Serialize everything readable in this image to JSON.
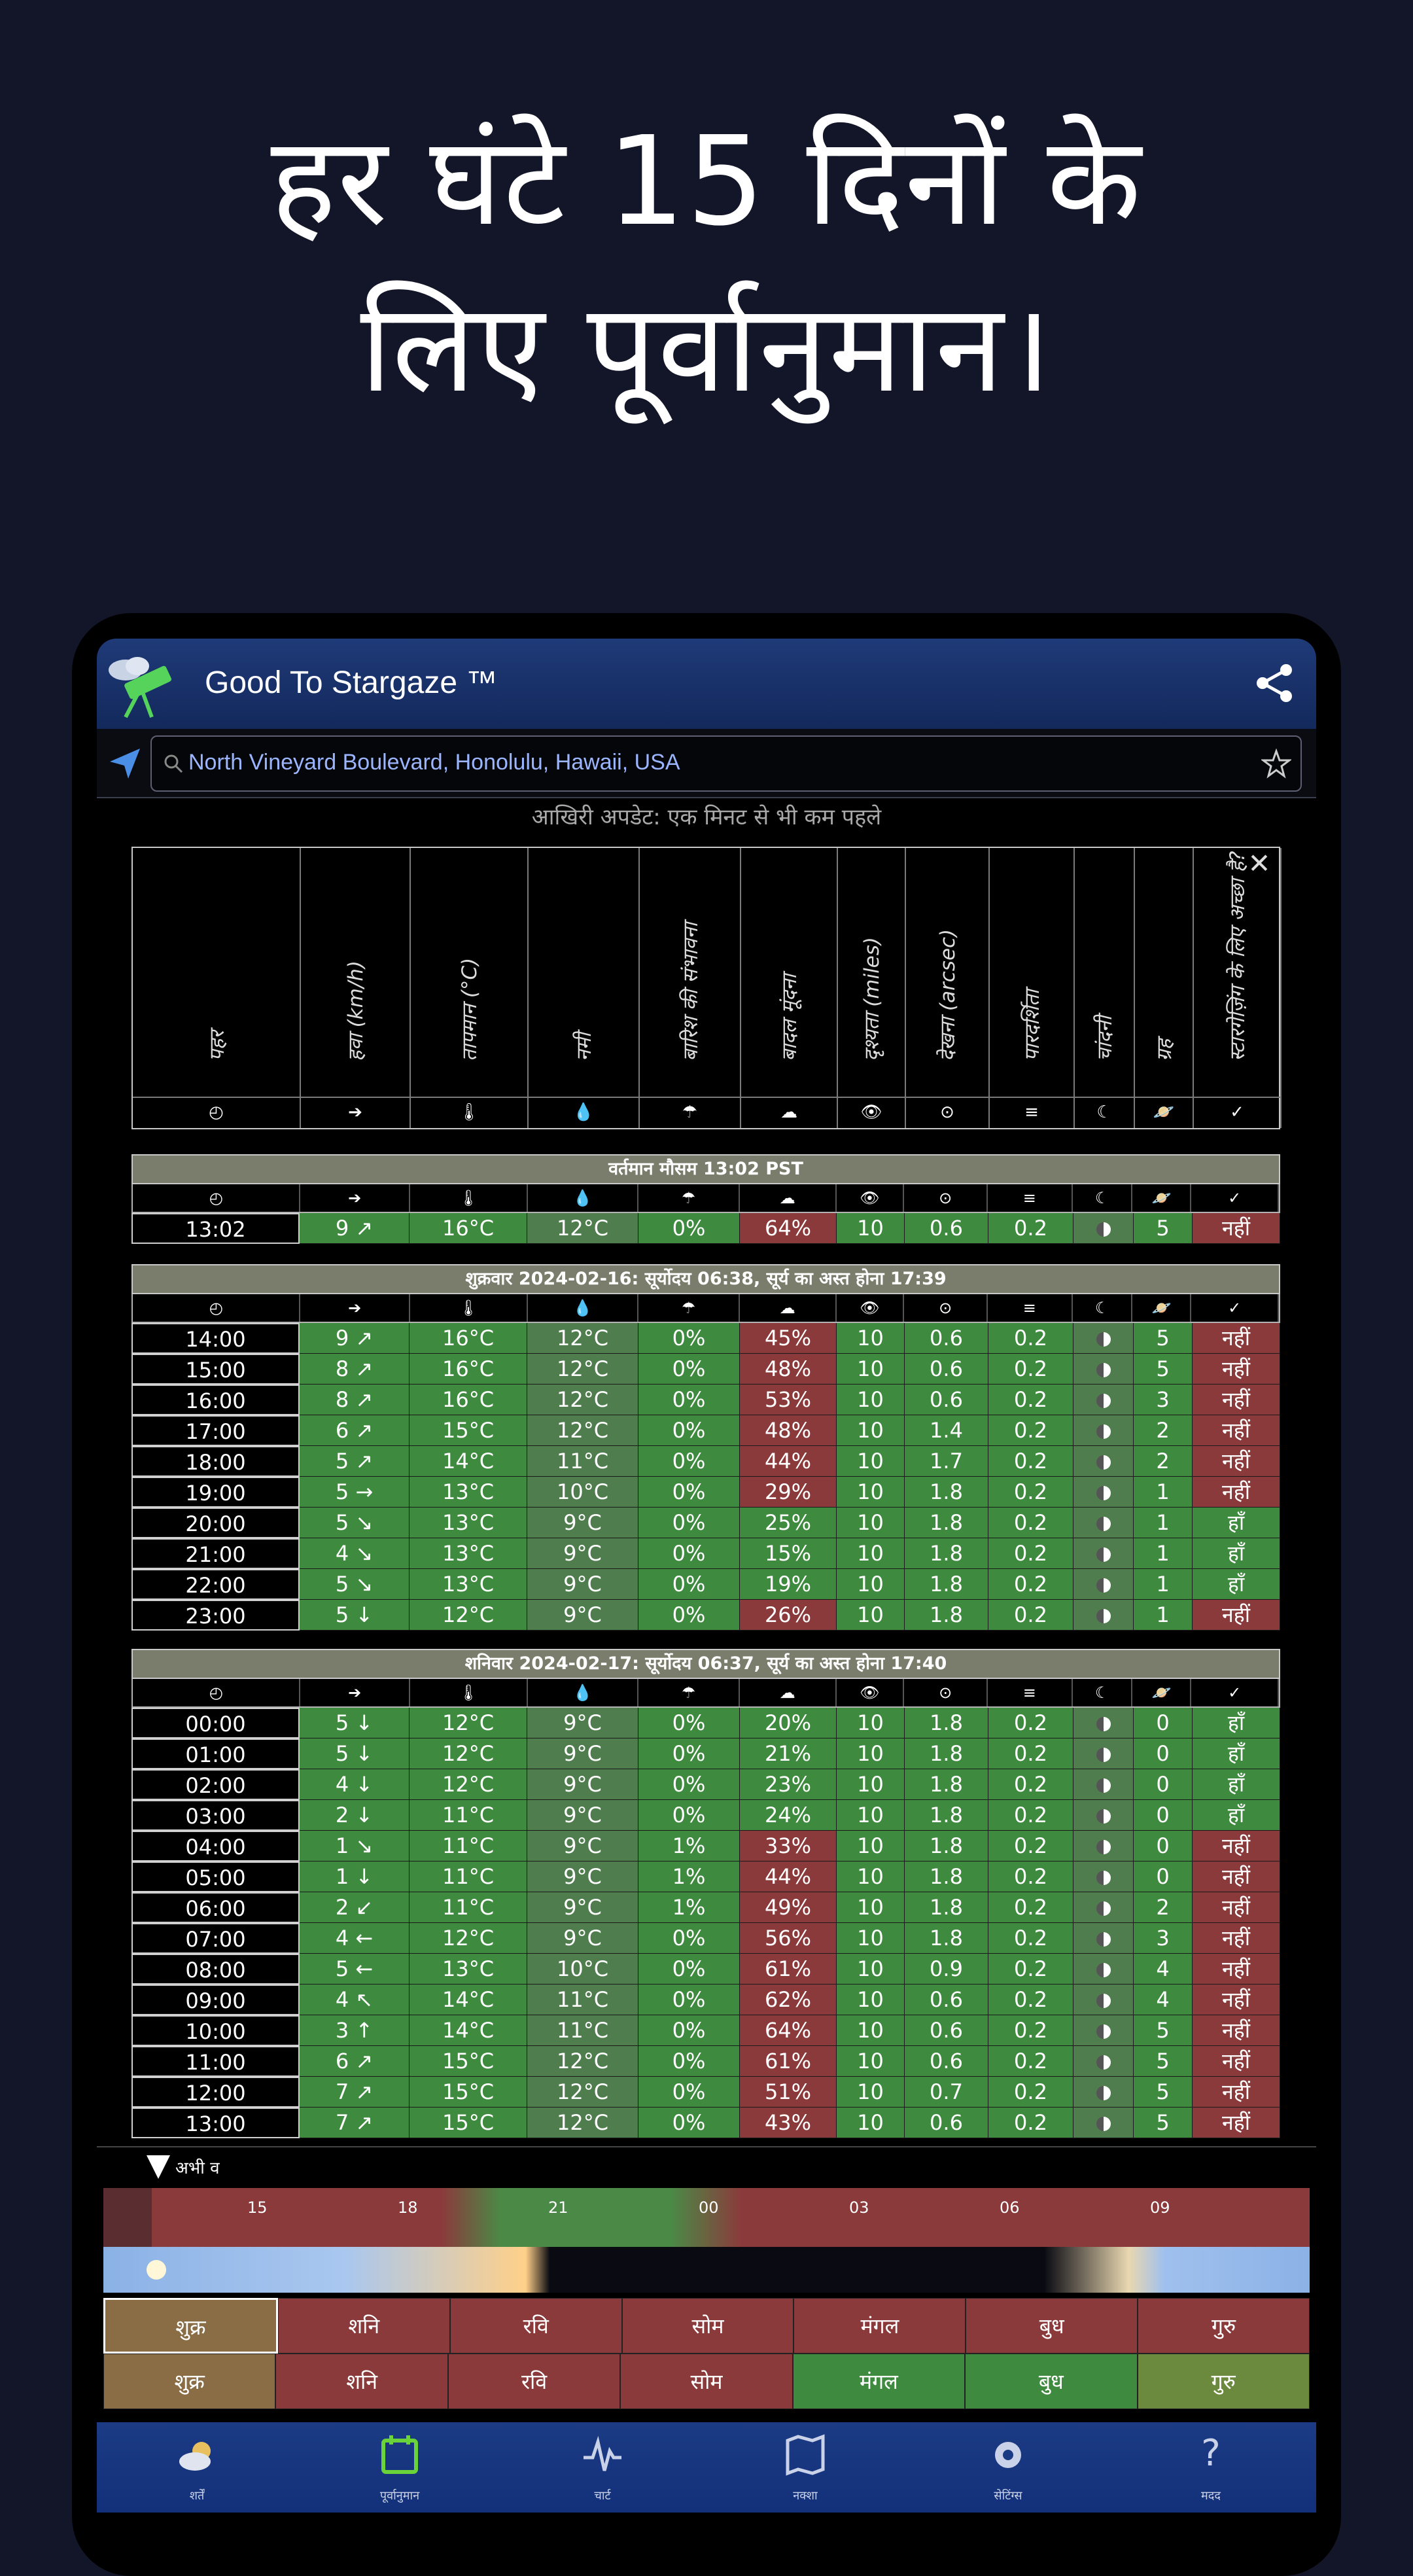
{
  "headline": [
    "हर घंटे 15 दिनों के",
    "लिए पूर्वानुमान।"
  ],
  "app": {
    "title": "Good To Stargaze ™"
  },
  "search": {
    "location": "North Vineyard Boulevard, Honolulu, Hawaii, USA"
  },
  "last_update": "आखिरी अपडेट: एक मिनट से भी कम पहले",
  "columns": [
    "पहर",
    "हवा (km/h)",
    "तापमान (°C)",
    "नमी",
    "बारिश की संभावना",
    "बादल मूंदना",
    "दृश्यता (miles)",
    "देखना (arcsec)",
    "पारदर्शिता",
    "चांदनी",
    "ग्रह",
    "स्टारगेज़िंग के लिए अच्छा है?"
  ],
  "column_icons": [
    "◴",
    "➔",
    "🌡",
    "💧",
    "☂",
    "☁",
    "👁",
    "⊙",
    "≡",
    "☾",
    "🪐",
    "✓"
  ],
  "current": {
    "title": "वर्तमान मौसम 13:02 PST",
    "row": [
      "13:02",
      "9 ↗",
      "16°C",
      "12°C",
      "0%",
      "64%",
      "10",
      "0.6",
      "0.2",
      "",
      "5",
      "नहीं"
    ]
  },
  "sections": [
    {
      "title": "शुक्रवार 2024-02-16: सूर्योदय 06:38, सूर्य का अस्त होना 17:39",
      "rows": [
        [
          "14:00",
          "9 ↗",
          "16°C",
          "12°C",
          "0%",
          "45%",
          "10",
          "0.6",
          "0.2",
          "",
          "5",
          "नहीं"
        ],
        [
          "15:00",
          "8 ↗",
          "16°C",
          "12°C",
          "0%",
          "48%",
          "10",
          "0.6",
          "0.2",
          "",
          "5",
          "नहीं"
        ],
        [
          "16:00",
          "8 ↗",
          "16°C",
          "12°C",
          "0%",
          "53%",
          "10",
          "0.6",
          "0.2",
          "",
          "3",
          "नहीं"
        ],
        [
          "17:00",
          "6 ↗",
          "15°C",
          "12°C",
          "0%",
          "48%",
          "10",
          "1.4",
          "0.2",
          "",
          "2",
          "नहीं"
        ],
        [
          "18:00",
          "5 ↗",
          "14°C",
          "11°C",
          "0%",
          "44%",
          "10",
          "1.7",
          "0.2",
          "",
          "2",
          "नहीं"
        ],
        [
          "19:00",
          "5 →",
          "13°C",
          "10°C",
          "0%",
          "29%",
          "10",
          "1.8",
          "0.2",
          "",
          "1",
          "नहीं"
        ],
        [
          "20:00",
          "5 ↘",
          "13°C",
          "9°C",
          "0%",
          "25%",
          "10",
          "1.8",
          "0.2",
          "",
          "1",
          "हाँ"
        ],
        [
          "21:00",
          "4 ↘",
          "13°C",
          "9°C",
          "0%",
          "15%",
          "10",
          "1.8",
          "0.2",
          "",
          "1",
          "हाँ"
        ],
        [
          "22:00",
          "5 ↘",
          "13°C",
          "9°C",
          "0%",
          "19%",
          "10",
          "1.8",
          "0.2",
          "",
          "1",
          "हाँ"
        ],
        [
          "23:00",
          "5 ↓",
          "12°C",
          "9°C",
          "0%",
          "26%",
          "10",
          "1.8",
          "0.2",
          "",
          "1",
          "नहीं"
        ]
      ]
    },
    {
      "title": "शनिवार 2024-02-17: सूर्योदय 06:37, सूर्य का अस्त होना 17:40",
      "rows": [
        [
          "00:00",
          "5 ↓",
          "12°C",
          "9°C",
          "0%",
          "20%",
          "10",
          "1.8",
          "0.2",
          "",
          "0",
          "हाँ"
        ],
        [
          "01:00",
          "5 ↓",
          "12°C",
          "9°C",
          "0%",
          "21%",
          "10",
          "1.8",
          "0.2",
          "",
          "0",
          "हाँ"
        ],
        [
          "02:00",
          "4 ↓",
          "12°C",
          "9°C",
          "0%",
          "23%",
          "10",
          "1.8",
          "0.2",
          "",
          "0",
          "हाँ"
        ],
        [
          "03:00",
          "2 ↓",
          "11°C",
          "9°C",
          "0%",
          "24%",
          "10",
          "1.8",
          "0.2",
          "",
          "0",
          "हाँ"
        ],
        [
          "04:00",
          "1 ↘",
          "11°C",
          "9°C",
          "1%",
          "33%",
          "10",
          "1.8",
          "0.2",
          "",
          "0",
          "नहीं"
        ],
        [
          "05:00",
          "1 ↓",
          "11°C",
          "9°C",
          "1%",
          "44%",
          "10",
          "1.8",
          "0.2",
          "",
          "0",
          "नहीं"
        ],
        [
          "06:00",
          "2 ↙",
          "11°C",
          "9°C",
          "1%",
          "49%",
          "10",
          "1.8",
          "0.2",
          "",
          "2",
          "नहीं"
        ],
        [
          "07:00",
          "4 ←",
          "12°C",
          "9°C",
          "0%",
          "56%",
          "10",
          "1.8",
          "0.2",
          "",
          "3",
          "नहीं"
        ],
        [
          "08:00",
          "5 ←",
          "13°C",
          "10°C",
          "0%",
          "61%",
          "10",
          "0.9",
          "0.2",
          "",
          "4",
          "नहीं"
        ],
        [
          "09:00",
          "4 ↖",
          "14°C",
          "11°C",
          "0%",
          "62%",
          "10",
          "0.6",
          "0.2",
          "",
          "4",
          "नहीं"
        ],
        [
          "10:00",
          "3 ↑",
          "14°C",
          "11°C",
          "0%",
          "64%",
          "10",
          "0.6",
          "0.2",
          "",
          "5",
          "नहीं"
        ],
        [
          "11:00",
          "6 ↗",
          "15°C",
          "12°C",
          "0%",
          "61%",
          "10",
          "0.6",
          "0.2",
          "",
          "5",
          "नहीं"
        ],
        [
          "12:00",
          "7 ↗",
          "15°C",
          "12°C",
          "0%",
          "51%",
          "10",
          "0.7",
          "0.2",
          "",
          "5",
          "नहीं"
        ],
        [
          "13:00",
          "7 ↗",
          "15°C",
          "12°C",
          "0%",
          "43%",
          "10",
          "0.6",
          "0.2",
          "",
          "5",
          "नहीं"
        ]
      ]
    }
  ],
  "timeline": {
    "now_label": "अभी व",
    "ticks": [
      "15",
      "18",
      "21",
      "00",
      "03",
      "06",
      "09"
    ]
  },
  "days_top": [
    "शुक्र",
    "शनि",
    "रवि",
    "सोम",
    "मंगल",
    "बुध",
    "गुरु"
  ],
  "days_bottom": [
    "शुक्र",
    "शनि",
    "रवि",
    "सोम",
    "मंगल",
    "बुध",
    "गुरु"
  ],
  "nav": [
    "शर्तें",
    "पूर्वानुमान",
    "चार्ट",
    "नक्शा",
    "सेटिंग्स",
    "मदद"
  ]
}
